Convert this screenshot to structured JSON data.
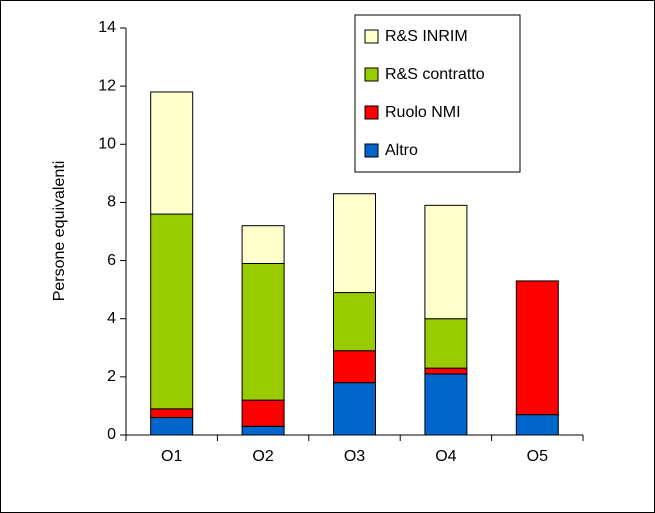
{
  "chart_data": {
    "type": "stacked_bar",
    "y_label": "Persone equivalenti",
    "categories": [
      "O1",
      "O2",
      "O3",
      "O4",
      "O5"
    ],
    "series": [
      {
        "name": "Altro",
        "color": "#0066cc",
        "values": [
          0.6,
          0.3,
          1.8,
          2.1,
          0.7
        ]
      },
      {
        "name": "Ruolo NMI",
        "color": "#ff0000",
        "values": [
          0.3,
          0.9,
          1.1,
          0.2,
          4.6
        ]
      },
      {
        "name": "R&S contratto",
        "color": "#99cc00",
        "values": [
          6.7,
          4.7,
          2.0,
          1.7,
          0
        ]
      },
      {
        "name": "R&S INRIM",
        "color": "#ffffcc",
        "values": [
          4.2,
          1.3,
          3.4,
          3.9,
          0
        ]
      }
    ],
    "ylim": [
      0,
      14
    ],
    "yticks": [
      0,
      2,
      4,
      6,
      8,
      10,
      12,
      14
    ],
    "grid": false
  }
}
